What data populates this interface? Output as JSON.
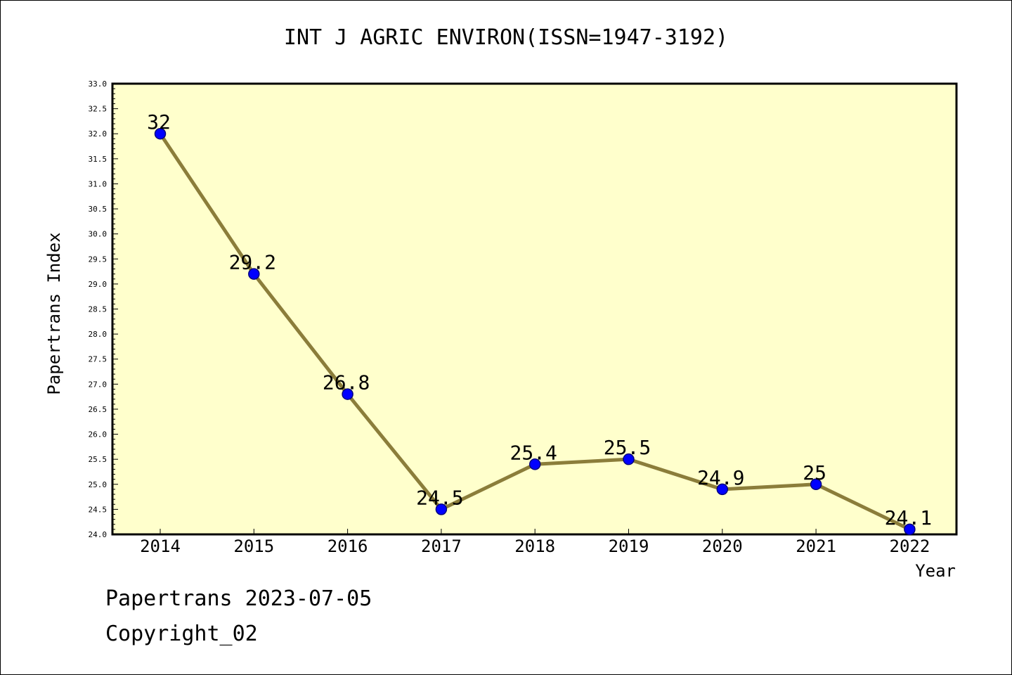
{
  "colors": {
    "plot_bg": "#ffffcc",
    "line": "#8b7d3a",
    "marker_fill": "#0000ff",
    "marker_stroke": "#000080",
    "axis": "#000000"
  },
  "chart_data": {
    "type": "line",
    "title": "INT J AGRIC ENVIRON(ISSN=1947-3192)",
    "xlabel": "Year",
    "ylabel": "Papertrans Index",
    "x": [
      "2014",
      "2015",
      "2016",
      "2017",
      "2018",
      "2019",
      "2020",
      "2021",
      "2022"
    ],
    "series": [
      {
        "values": [
          32,
          29.2,
          26.8,
          24.5,
          25.4,
          25.5,
          24.9,
          25,
          24.1
        ]
      }
    ],
    "data_labels": [
      "32",
      "29.2",
      "26.8",
      "24.5",
      "25.4",
      "25.5",
      "24.9",
      "25",
      "24.1"
    ],
    "ylim": [
      24.0,
      33.0
    ],
    "ytick_labels": [
      "24.0",
      "24.5",
      "25.0",
      "25.5",
      "26.0",
      "26.5",
      "27.0",
      "27.5",
      "28.0",
      "28.5",
      "29.0",
      "29.5",
      "30.0",
      "30.5",
      "31.0",
      "31.5",
      "32.0",
      "32.5",
      "33.0"
    ],
    "grid": false,
    "legend": "none"
  },
  "footer": {
    "date_line": "Papertrans 2023-07-05",
    "copyright_line": "Copyright_02"
  }
}
